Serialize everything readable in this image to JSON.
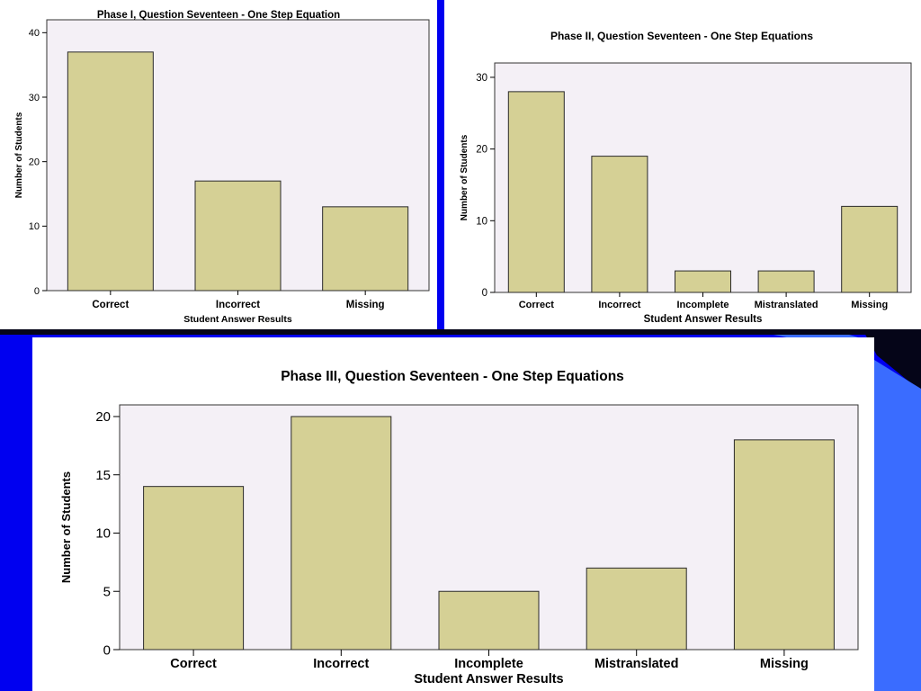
{
  "colors": {
    "background": "#0000f0",
    "accent_light_blue": "#3a6cff",
    "accent_dark": "#050518",
    "plot_area": "#f4f0f6",
    "bar_fill": "#d5d095",
    "bar_stroke": "#2a2a2a"
  },
  "chart_data": [
    {
      "type": "bar",
      "title": "Phase I, Question Seventeen  - One Step Equation",
      "xlabel": "Student Answer Results",
      "ylabel": "Number of Students",
      "categories": [
        "Correct",
        "Incorrect",
        "Missing"
      ],
      "values": [
        37,
        17,
        13
      ],
      "ylim": [
        0,
        42
      ],
      "yticks": [
        0,
        10,
        20,
        30,
        40
      ],
      "grid": false
    },
    {
      "type": "bar",
      "title": "Phase II, Question Seventeen - One Step Equations",
      "xlabel": "Student Answer Results",
      "ylabel": "Number of Students",
      "categories": [
        "Correct",
        "Incorrect",
        "Incomplete",
        "Mistranslated",
        "Missing"
      ],
      "values": [
        28,
        19,
        3,
        3,
        12
      ],
      "ylim": [
        0,
        32
      ],
      "yticks": [
        0,
        10,
        20,
        30
      ],
      "grid": false
    },
    {
      "type": "bar",
      "title": "Phase III, Question Seventeen - One Step Equations",
      "xlabel": "Student Answer Results",
      "ylabel": "Number of Students",
      "categories": [
        "Correct",
        "Incorrect",
        "Incomplete",
        "Mistranslated",
        "Missing"
      ],
      "values": [
        14,
        20,
        5,
        7,
        18
      ],
      "ylim": [
        0,
        21
      ],
      "yticks": [
        0,
        5,
        10,
        15,
        20
      ],
      "grid": false
    }
  ]
}
